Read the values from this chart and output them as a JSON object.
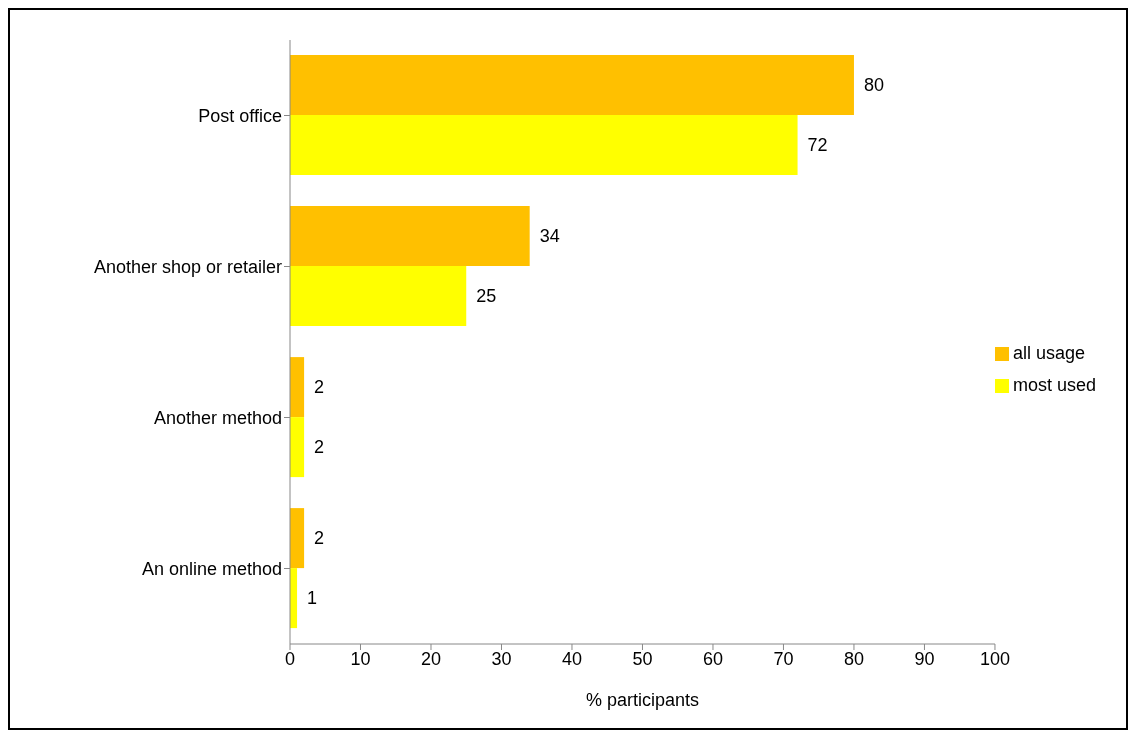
{
  "chart_data": {
    "type": "bar",
    "orientation": "horizontal",
    "categories": [
      "Post office",
      "Another shop or retailer",
      "Another method",
      "An online method"
    ],
    "series": [
      {
        "name": "all usage",
        "color": "#ffc000",
        "values": [
          80,
          34,
          2,
          2
        ]
      },
      {
        "name": "most used",
        "color": "#ffff00",
        "values": [
          72,
          25,
          2,
          1
        ]
      }
    ],
    "xlabel": "% participants",
    "xlim": [
      0,
      100
    ],
    "xticks": [
      0,
      10,
      20,
      30,
      40,
      50,
      60,
      70,
      80,
      90,
      100
    ],
    "data_labels": true,
    "legend": "right"
  }
}
